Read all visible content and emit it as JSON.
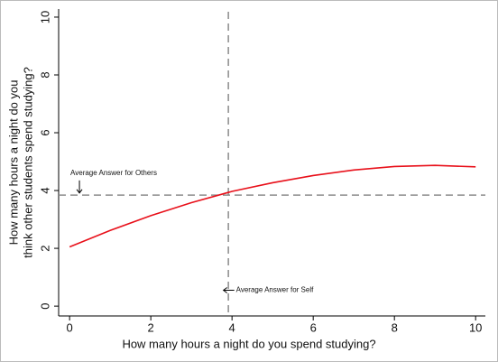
{
  "chart_data": {
    "type": "line",
    "xlabel": "How many hours a night do you spend studying?",
    "ylabel": [
      "How many hours a night do you",
      "think other students spend studying?"
    ],
    "x": [
      0,
      1,
      2,
      3,
      4,
      5,
      6,
      7,
      8,
      9,
      10
    ],
    "values": [
      2.05,
      2.62,
      3.13,
      3.58,
      3.97,
      4.27,
      4.52,
      4.71,
      4.83,
      4.87,
      4.82
    ],
    "color": "#e8101a",
    "xlim": [
      -0.27,
      10.24
    ],
    "ylim": [
      -0.34,
      10.28
    ],
    "xticks": [
      0,
      2,
      4,
      6,
      8,
      10
    ],
    "yticks": [
      0,
      2,
      4,
      6,
      8,
      10
    ],
    "hline": 3.84,
    "vline": 3.91,
    "refline_color": "#8c8c8c",
    "annotations": [
      {
        "text": "Average Answer for Others",
        "x": 0.02,
        "y": 4.6,
        "arrow": "down"
      },
      {
        "text": "Average Answer for Self",
        "x": 4.1,
        "y": 0.55,
        "arrow": "left"
      }
    ]
  }
}
